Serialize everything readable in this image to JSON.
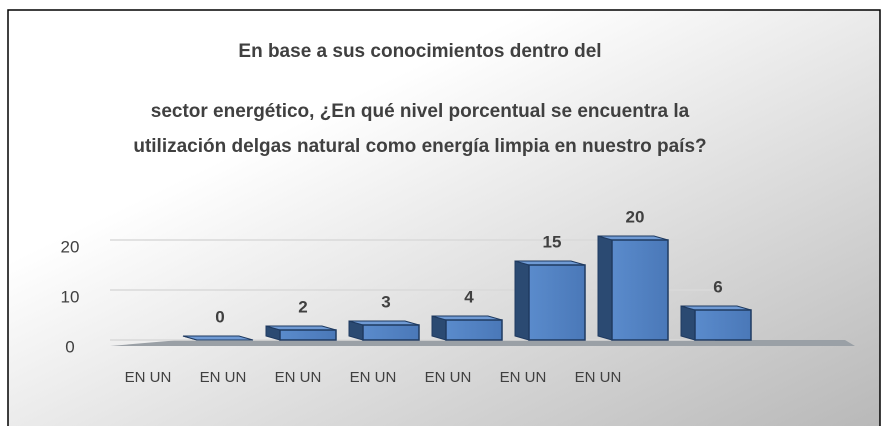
{
  "chart_data": {
    "type": "bar3d",
    "title": [
      "En base a sus conocimientos dentro del",
      "sector energético, ¿En qué nivel porcentual se encuentra la",
      "utilización delgas natural como energía limpia en nuestro país?"
    ],
    "categories": [
      "EN UN",
      "EN UN",
      "EN UN",
      "EN UN",
      "EN UN",
      "EN UN",
      "EN UN"
    ],
    "values": [
      0,
      2,
      3,
      4,
      15,
      20,
      6
    ],
    "color": "#4f81bd",
    "ylim": [
      0,
      20
    ],
    "yticks": [
      0,
      10,
      20
    ],
    "grid": true
  }
}
